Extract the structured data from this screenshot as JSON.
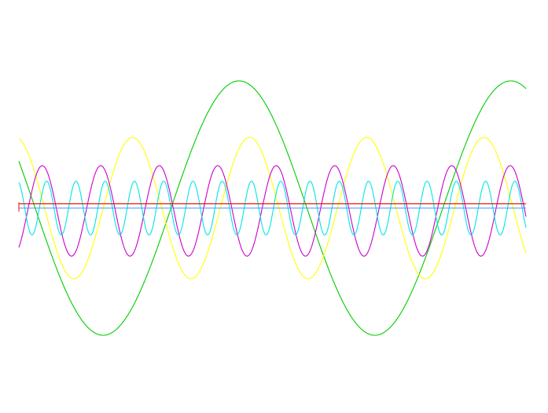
{
  "chart_data": {
    "type": "line",
    "title": "",
    "xlabel": "",
    "ylabel": "",
    "xlim": [
      0,
      1
    ],
    "ylim": [
      -1,
      1
    ],
    "grid": false,
    "legend": "none",
    "series": [
      {
        "color": "#00cc00",
        "amplitude": 0.9,
        "cycles": 1.866,
        "phase_at_start": 0.88,
        "offset": 0.0
      },
      {
        "color": "#ffff00",
        "amplitude": 0.5,
        "cycles": 4.33,
        "phase_at_start": 0.56,
        "offset": 0.0
      },
      {
        "color": "#cc00cc",
        "amplitude": 0.32,
        "cycles": 8.67,
        "phase_at_start": -0.3,
        "offset": -0.02
      },
      {
        "color": "#00e5e5",
        "amplitude": 0.19,
        "cycles": 17.33,
        "phase_at_start": 0.6,
        "offset": 0.0
      },
      {
        "color": "#ff0000",
        "amplitude": 0.0,
        "cycles": 0,
        "phase_at_start": 0,
        "offset": 0.03
      },
      {
        "color": "#3399ff",
        "amplitude": 0.0,
        "cycles": 0,
        "phase_at_start": 0,
        "offset": 0.0
      }
    ]
  }
}
